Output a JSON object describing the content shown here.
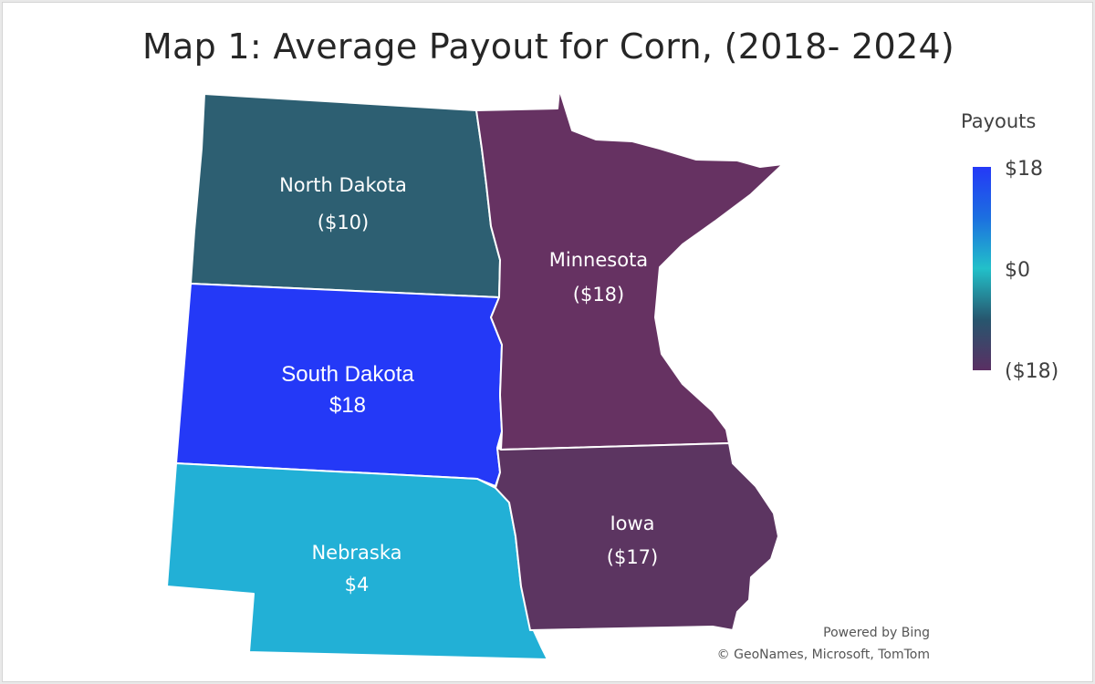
{
  "title": "Map 1: Average Payout for Corn, (2018- 2024)",
  "map": {
    "regions": [
      {
        "id": "north-dakota",
        "name": "North Dakota",
        "value_label": "($10)",
        "value": -10,
        "color": "#2d5f72"
      },
      {
        "id": "south-dakota",
        "name": "South Dakota",
        "value_label": "$18",
        "value": 18,
        "color": "#2439f7"
      },
      {
        "id": "nebraska",
        "name": "Nebraska",
        "value_label": "$4",
        "value": 4,
        "color": "#22b0d6"
      },
      {
        "id": "minnesota",
        "name": "Minnesota",
        "value_label": "($18)",
        "value": -18,
        "color": "#663262"
      },
      {
        "id": "iowa",
        "name": "Iowa",
        "value_label": "($17)",
        "value": -17,
        "color": "#5c3561"
      }
    ]
  },
  "legend": {
    "title": "Payouts",
    "ticks": [
      "$18",
      "$0",
      "($18)"
    ],
    "range": [
      -18,
      18
    ]
  },
  "attribution": {
    "line1": "Powered by Bing",
    "line2": "© GeoNames, Microsoft, TomTom"
  }
}
